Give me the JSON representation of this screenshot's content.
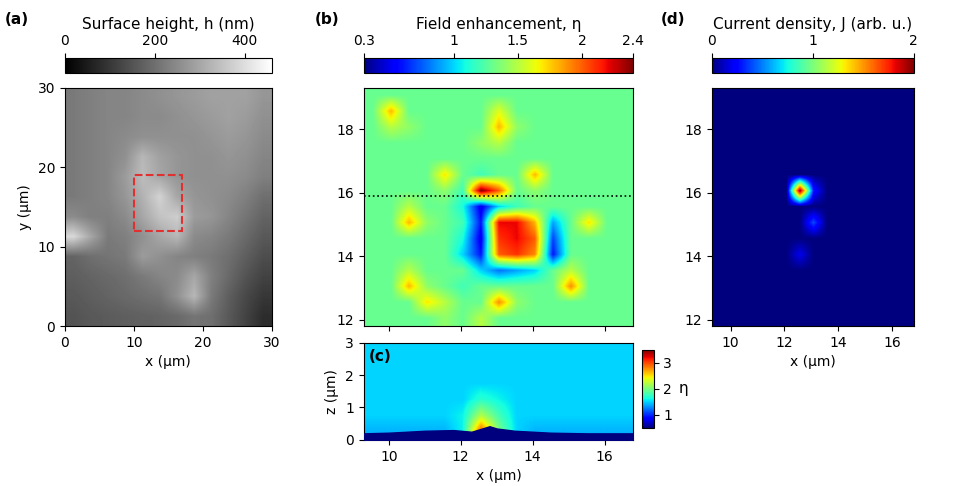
{
  "chart_data": [
    {
      "type": "heatmap",
      "panel": "(a)",
      "x_label": "x (µm)",
      "y_label": "y (µm)",
      "xlim": [
        0,
        30
      ],
      "ylim": [
        0,
        30
      ],
      "xticks": [
        0,
        10,
        20,
        30
      ],
      "yticks": [
        0,
        10,
        20,
        30
      ],
      "colorbar": {
        "label": "Surface height, h (nm)",
        "range": [
          0,
          460
        ],
        "ticks": [
          0,
          200,
          400
        ]
      },
      "region": {
        "x": [
          10,
          17
        ],
        "y": [
          12,
          19
        ],
        "color": "#e03030",
        "line_style": "dashed"
      },
      "cells": [
        [
          150,
          160,
          165,
          170,
          175,
          180,
          190,
          210,
          200,
          160,
          120,
          80
        ],
        [
          160,
          170,
          180,
          190,
          200,
          210,
          260,
          330,
          220,
          170,
          130,
          100
        ],
        [
          170,
          180,
          190,
          200,
          220,
          240,
          250,
          300,
          230,
          190,
          150,
          120
        ],
        [
          180,
          200,
          210,
          220,
          280,
          260,
          240,
          230,
          220,
          200,
          170,
          140
        ],
        [
          390,
          300,
          220,
          230,
          260,
          300,
          330,
          250,
          240,
          220,
          190,
          160
        ],
        [
          250,
          230,
          230,
          250,
          300,
          350,
          370,
          280,
          270,
          240,
          210,
          180
        ],
        [
          220,
          230,
          240,
          270,
          320,
          380,
          300,
          270,
          260,
          250,
          230,
          200
        ],
        [
          220,
          230,
          240,
          280,
          340,
          300,
          270,
          260,
          260,
          260,
          250,
          230
        ],
        [
          220,
          230,
          240,
          260,
          330,
          290,
          270,
          260,
          260,
          270,
          260,
          240
        ],
        [
          220,
          230,
          240,
          250,
          260,
          260,
          260,
          260,
          270,
          280,
          270,
          250
        ],
        [
          220,
          230,
          240,
          240,
          250,
          250,
          260,
          270,
          280,
          290,
          280,
          260
        ],
        [
          220,
          230,
          240,
          240,
          250,
          260,
          270,
          280,
          290,
          290,
          290,
          270
        ]
      ]
    },
    {
      "type": "heatmap",
      "panel": "(b)",
      "tick_labels": "y",
      "xlim": [
        9.3,
        16.8
      ],
      "ylim": [
        11.8,
        19.3
      ],
      "xticks": [
        10,
        12,
        14,
        16
      ],
      "yticks": [
        12,
        14,
        16,
        18
      ],
      "colorbar": {
        "label": "Field enhancement, η",
        "range": [
          0.3,
          2.4
        ],
        "ticks": [
          0.3,
          1,
          1.5,
          2,
          2.4
        ]
      },
      "line": {
        "y": 15.9,
        "line_style": "dotted",
        "color": "#000000"
      },
      "cells": [
        [
          1.3,
          1.3,
          1.3,
          1.3,
          1.4,
          1.3,
          1.5,
          1.3,
          1.3,
          1.3,
          1.3,
          1.3,
          1.3,
          1.3,
          1.3
        ],
        [
          1.3,
          1.3,
          1.3,
          1.7,
          1.5,
          1.3,
          1.3,
          1.9,
          1.4,
          1.3,
          1.3,
          1.3,
          1.3,
          1.3,
          1.3
        ],
        [
          1.3,
          1.3,
          1.8,
          1.4,
          1.3,
          1.2,
          1.3,
          1.3,
          1.3,
          1.3,
          1.3,
          1.9,
          1.3,
          1.3,
          1.3
        ],
        [
          1.3,
          1.3,
          1.5,
          1.3,
          1.3,
          1.3,
          1.0,
          0.8,
          0.9,
          1.0,
          1.3,
          1.5,
          1.3,
          1.3,
          1.3
        ],
        [
          1.3,
          1.3,
          1.3,
          1.3,
          1.3,
          1.0,
          0.6,
          2.0,
          2.1,
          1.9,
          0.6,
          1.3,
          1.3,
          1.3,
          1.3
        ],
        [
          1.3,
          1.3,
          1.3,
          1.3,
          1.3,
          1.1,
          0.5,
          2.1,
          2.2,
          2.0,
          0.7,
          1.3,
          1.3,
          1.3,
          1.3
        ],
        [
          1.3,
          1.3,
          1.8,
          1.4,
          1.3,
          1.2,
          0.6,
          2.2,
          2.2,
          1.8,
          0.9,
          1.3,
          1.7,
          1.3,
          1.3
        ],
        [
          1.3,
          1.3,
          1.5,
          1.3,
          1.3,
          1.1,
          0.5,
          1.0,
          1.2,
          1.3,
          1.3,
          1.3,
          1.3,
          1.3,
          1.3
        ],
        [
          1.3,
          1.3,
          1.3,
          1.3,
          1.4,
          1.2,
          2.4,
          2.0,
          1.3,
          1.4,
          1.3,
          1.3,
          1.3,
          1.3,
          1.3
        ],
        [
          1.3,
          1.3,
          1.3,
          1.3,
          1.7,
          1.3,
          1.2,
          1.3,
          1.3,
          1.8,
          1.3,
          1.3,
          1.3,
          1.3,
          1.3
        ],
        [
          1.3,
          1.3,
          1.3,
          1.3,
          1.3,
          1.3,
          1.3,
          1.3,
          1.3,
          1.3,
          1.3,
          1.3,
          1.3,
          1.3,
          1.3
        ],
        [
          1.3,
          1.3,
          1.3,
          1.3,
          1.3,
          1.3,
          1.4,
          1.5,
          1.3,
          1.3,
          1.3,
          1.3,
          1.3,
          1.3,
          1.3
        ],
        [
          1.3,
          1.5,
          1.4,
          1.3,
          1.3,
          1.3,
          1.3,
          1.8,
          1.4,
          1.3,
          1.3,
          1.3,
          1.3,
          1.3,
          1.3
        ],
        [
          1.3,
          1.8,
          1.3,
          1.3,
          1.3,
          1.3,
          1.3,
          1.6,
          1.3,
          1.3,
          1.3,
          1.3,
          1.3,
          1.3,
          1.3
        ],
        [
          1.3,
          1.3,
          1.3,
          1.3,
          1.3,
          1.3,
          1.3,
          1.3,
          1.3,
          1.3,
          1.3,
          1.3,
          1.3,
          1.3,
          1.3
        ]
      ]
    },
    {
      "type": "heatmap",
      "panel": "(c)",
      "x_label": "x (µm)",
      "y_label": "z (µm)",
      "xlim": [
        9.3,
        16.8
      ],
      "ylim": [
        0,
        3
      ],
      "xticks": [
        10,
        12,
        14,
        16
      ],
      "yticks": [
        0,
        1,
        2,
        3
      ],
      "colorbar": {
        "label": "η",
        "range": [
          0.5,
          3.5
        ],
        "ticks": [
          1,
          2,
          3
        ]
      },
      "surface": {
        "x": [
          9.3,
          10,
          11,
          11.8,
          12.3,
          12.6,
          12.8,
          13.0,
          13.5,
          14.5,
          15.5,
          16.8
        ],
        "z": [
          0.2,
          0.22,
          0.28,
          0.3,
          0.25,
          0.35,
          0.42,
          0.35,
          0.28,
          0.22,
          0.2,
          0.2
        ],
        "color": "#00007f"
      },
      "cells": [
        [
          1.4,
          1.4,
          1.4,
          1.4,
          1.4,
          1.6,
          3.0,
          2.0,
          1.5,
          1.4,
          1.4,
          1.4,
          1.4,
          1.4,
          1.4
        ],
        [
          1.5,
          1.5,
          1.5,
          1.5,
          1.5,
          1.6,
          2.2,
          1.8,
          1.5,
          1.5,
          1.5,
          1.5,
          1.5,
          1.5,
          1.5
        ],
        [
          1.5,
          1.5,
          1.5,
          1.5,
          1.5,
          1.5,
          1.7,
          1.6,
          1.5,
          1.5,
          1.5,
          1.5,
          1.5,
          1.5,
          1.5
        ],
        [
          1.5,
          1.5,
          1.5,
          1.5,
          1.5,
          1.5,
          1.5,
          1.5,
          1.5,
          1.5,
          1.5,
          1.5,
          1.5,
          1.5,
          1.5
        ],
        [
          1.5,
          1.5,
          1.5,
          1.5,
          1.5,
          1.5,
          1.5,
          1.5,
          1.5,
          1.5,
          1.5,
          1.5,
          1.5,
          1.5,
          1.5
        ],
        [
          1.5,
          1.5,
          1.5,
          1.5,
          1.5,
          1.5,
          1.5,
          1.5,
          1.5,
          1.5,
          1.5,
          1.5,
          1.5,
          1.5,
          1.5
        ]
      ]
    },
    {
      "type": "heatmap",
      "panel": "(d)",
      "x_label": "x (µm)",
      "xlim": [
        9.3,
        16.8
      ],
      "ylim": [
        11.8,
        19.3
      ],
      "xticks": [
        10,
        12,
        14,
        16
      ],
      "yticks": [
        12,
        14,
        16,
        18
      ],
      "colorbar": {
        "label": "Current density, J (arb. u.)",
        "range": [
          0,
          2
        ],
        "ticks": [
          0,
          1,
          2
        ]
      },
      "cells": [
        [
          0,
          0,
          0,
          0,
          0,
          0,
          0,
          0,
          0,
          0,
          0,
          0,
          0,
          0,
          0
        ],
        [
          0,
          0,
          0,
          0,
          0,
          0,
          0,
          0,
          0,
          0,
          0,
          0,
          0,
          0,
          0
        ],
        [
          0,
          0,
          0,
          0,
          0,
          0,
          0,
          0,
          0,
          0,
          0,
          0,
          0,
          0,
          0
        ],
        [
          0,
          0,
          0,
          0,
          0,
          0,
          0,
          0,
          0,
          0,
          0,
          0,
          0,
          0,
          0
        ],
        [
          0,
          0,
          0,
          0,
          0,
          0,
          0.2,
          0,
          0,
          0,
          0,
          0,
          0,
          0,
          0
        ],
        [
          0,
          0,
          0,
          0,
          0,
          0,
          0,
          0,
          0,
          0,
          0,
          0,
          0,
          0,
          0
        ],
        [
          0,
          0,
          0,
          0,
          0,
          0,
          0,
          0.4,
          0,
          0,
          0,
          0,
          0,
          0,
          0
        ],
        [
          0,
          0,
          0,
          0,
          0,
          0,
          0,
          0,
          0,
          0,
          0,
          0,
          0,
          0,
          0
        ],
        [
          0,
          0,
          0,
          0,
          0,
          0,
          2,
          0.3,
          0,
          0,
          0,
          0,
          0,
          0,
          0
        ],
        [
          0,
          0,
          0,
          0,
          0,
          0,
          0,
          0,
          0,
          0,
          0,
          0,
          0,
          0,
          0
        ],
        [
          0,
          0,
          0,
          0,
          0,
          0,
          0,
          0,
          0,
          0,
          0,
          0,
          0,
          0,
          0
        ],
        [
          0,
          0,
          0,
          0,
          0,
          0,
          0,
          0,
          0,
          0,
          0,
          0,
          0,
          0,
          0
        ],
        [
          0,
          0,
          0,
          0,
          0,
          0,
          0,
          0,
          0,
          0,
          0,
          0,
          0,
          0,
          0
        ],
        [
          0,
          0,
          0,
          0,
          0,
          0,
          0,
          0,
          0,
          0,
          0,
          0,
          0,
          0,
          0
        ],
        [
          0,
          0,
          0,
          0,
          0,
          0,
          0,
          0,
          0,
          0,
          0,
          0,
          0,
          0,
          0
        ]
      ]
    }
  ]
}
